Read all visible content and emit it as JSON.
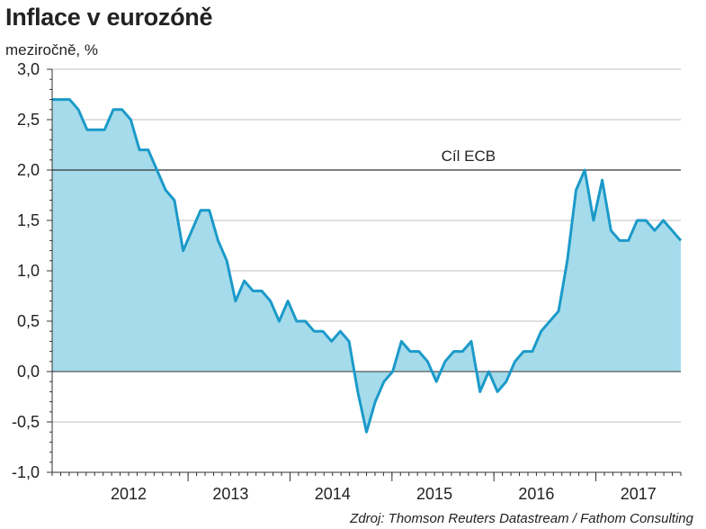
{
  "chart_data": {
    "type": "area",
    "title": "Inflace v eurozóně",
    "ylabel": "meziročně, %",
    "ylim": [
      -1.0,
      3.0
    ],
    "yticks": [
      3.0,
      2.5,
      2.0,
      1.5,
      1.0,
      0.5,
      0.0,
      -0.5,
      -1.0
    ],
    "ytick_labels": [
      "3,0",
      "2,5",
      "2,0",
      "1,5",
      "1,0",
      "0,5",
      "0,0",
      "-0,5",
      "-1,0"
    ],
    "x_start": "2011-09",
    "x_range_months": [
      0,
      74
    ],
    "year_labels": [
      {
        "label": "2012",
        "center_month": 9
      },
      {
        "label": "2013",
        "center_month": 21
      },
      {
        "label": "2014",
        "center_month": 33
      },
      {
        "label": "2015",
        "center_month": 45
      },
      {
        "label": "2016",
        "center_month": 57
      },
      {
        "label": "2017",
        "center_month": 69
      }
    ],
    "year_boundaries_months": [
      16,
      28,
      40,
      52,
      64
    ],
    "series": [
      {
        "name": "Inflace v eurozóně",
        "values": [
          2.7,
          2.7,
          2.7,
          2.6,
          2.4,
          2.4,
          2.4,
          2.6,
          2.6,
          2.5,
          2.2,
          2.2,
          2.0,
          1.8,
          1.7,
          1.2,
          1.4,
          1.6,
          1.6,
          1.3,
          1.1,
          0.7,
          0.9,
          0.8,
          0.8,
          0.7,
          0.5,
          0.7,
          0.5,
          0.5,
          0.4,
          0.4,
          0.3,
          0.4,
          0.3,
          -0.2,
          -0.6,
          -0.3,
          -0.1,
          0.0,
          0.3,
          0.2,
          0.2,
          0.1,
          -0.1,
          0.1,
          0.2,
          0.2,
          0.3,
          -0.2,
          0.0,
          -0.2,
          -0.1,
          0.1,
          0.2,
          0.2,
          0.4,
          0.5,
          0.6,
          1.1,
          1.8,
          2.0,
          1.5,
          1.9,
          1.4,
          1.3,
          1.3,
          1.5,
          1.5,
          1.4,
          1.5,
          1.4,
          1.3
        ]
      }
    ],
    "reference_line": {
      "value": 2.0,
      "label": "Cíl ECB"
    },
    "source": "Zdroj: Thomson Reuters Datastream / Fathom Consulting",
    "colors": {
      "line": "#1b9ac9",
      "fill": "#a6dbeb",
      "grid": "#bfbfbf",
      "axis": "#333333",
      "target": "#333333"
    }
  }
}
